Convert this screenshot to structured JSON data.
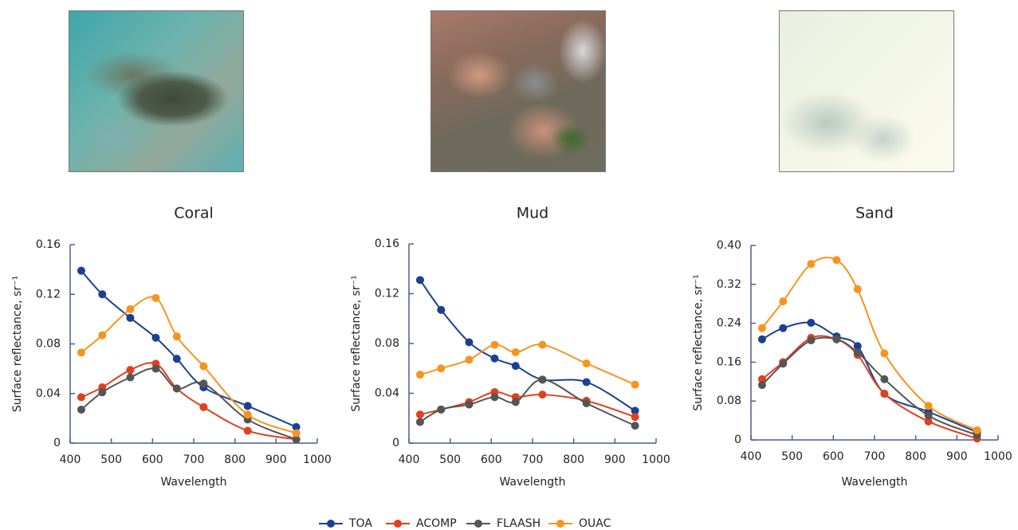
{
  "chart_data": [
    {
      "type": "line",
      "title": "Coral",
      "x_label": "Wavelength",
      "y_label": "Surface reflectance, sr⁻¹",
      "x": [
        427,
        478,
        546,
        608,
        659,
        724,
        831,
        949
      ],
      "xlim": [
        400,
        1000
      ],
      "xticks": [
        400,
        500,
        600,
        700,
        800,
        900,
        1000
      ],
      "ylim": [
        0,
        0.16
      ],
      "yticks": [
        0,
        0.04,
        0.08,
        0.12,
        0.16
      ],
      "series": [
        {
          "name": "TOA",
          "color": "#1b3f93",
          "values": [
            0.139,
            0.12,
            0.101,
            0.085,
            0.068,
            0.045,
            0.03,
            0.013
          ]
        },
        {
          "name": "ACOMP",
          "color": "#e0401e",
          "values": [
            0.037,
            0.045,
            0.059,
            0.064,
            0.044,
            0.029,
            0.01,
            0.003
          ]
        },
        {
          "name": "FLAASH",
          "color": "#555555",
          "values": [
            0.027,
            0.041,
            0.053,
            0.06,
            0.044,
            0.048,
            0.019,
            0.003
          ]
        },
        {
          "name": "OUAC",
          "color": "#f7941d",
          "values": [
            0.073,
            0.087,
            0.108,
            0.117,
            0.086,
            0.062,
            0.023,
            0.008
          ]
        }
      ]
    },
    {
      "type": "line",
      "title": "Mud",
      "x_label": "Wavelength",
      "y_label": "Surface reflectance, sr⁻¹",
      "x": [
        427,
        478,
        546,
        608,
        659,
        724,
        831,
        949
      ],
      "xlim": [
        400,
        1000
      ],
      "xticks": [
        400,
        500,
        600,
        700,
        800,
        900,
        1000
      ],
      "ylim": [
        0,
        0.16
      ],
      "yticks": [
        0,
        0.04,
        0.08,
        0.12,
        0.16
      ],
      "series": [
        {
          "name": "TOA",
          "color": "#1b3f93",
          "values": [
            0.131,
            0.107,
            0.081,
            0.068,
            0.062,
            0.051,
            0.049,
            0.026
          ]
        },
        {
          "name": "ACOMP",
          "color": "#e0401e",
          "values": [
            0.023,
            0.027,
            0.033,
            0.041,
            0.037,
            0.039,
            0.034,
            0.021
          ]
        },
        {
          "name": "FLAASH",
          "color": "#555555",
          "values": [
            0.017,
            0.027,
            0.031,
            0.037,
            0.033,
            0.051,
            0.032,
            0.014
          ]
        },
        {
          "name": "OUAC",
          "color": "#f7941d",
          "values": [
            0.055,
            0.06,
            0.067,
            0.079,
            0.073,
            0.079,
            0.064,
            0.047
          ]
        }
      ]
    },
    {
      "type": "line",
      "title": "Sand",
      "x_label": "Wavelength",
      "y_label": "Surface reflectance, sr⁻¹",
      "x": [
        427,
        478,
        546,
        608,
        659,
        724,
        831,
        949
      ],
      "xlim": [
        400,
        1000
      ],
      "xticks": [
        400,
        500,
        600,
        700,
        800,
        900,
        1000
      ],
      "ylim": [
        0,
        0.4
      ],
      "yticks": [
        0,
        0.08,
        0.16,
        0.24,
        0.32,
        {
          "value": 0.4,
          "label": "0.40"
        }
      ],
      "series": [
        {
          "name": "TOA",
          "color": "#1b3f93",
          "values": [
            0.207,
            0.23,
            0.241,
            0.213,
            0.193,
            0.095,
            0.058,
            0.016
          ]
        },
        {
          "name": "ACOMP",
          "color": "#e0401e",
          "values": [
            0.125,
            0.16,
            0.21,
            0.207,
            0.175,
            0.095,
            0.038,
            0.003
          ]
        },
        {
          "name": "FLAASH",
          "color": "#555555",
          "values": [
            0.113,
            0.157,
            0.205,
            0.207,
            0.18,
            0.125,
            0.05,
            0.01
          ]
        },
        {
          "name": "OUAC",
          "color": "#f7941d",
          "values": [
            0.23,
            0.285,
            0.362,
            0.37,
            0.31,
            0.178,
            0.07,
            0.02
          ]
        }
      ]
    }
  ]
}
